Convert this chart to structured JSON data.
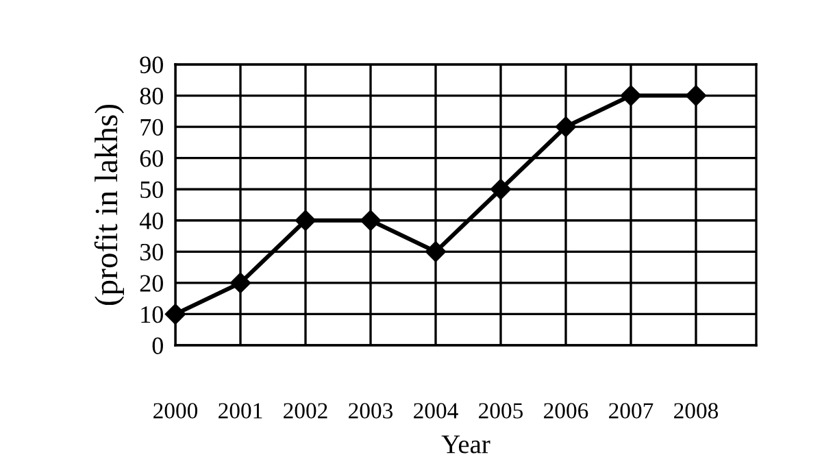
{
  "chart_data": {
    "type": "line",
    "xlabel": "Year",
    "ylabel": "(profit in lakhs)",
    "categories": [
      "2000",
      "2001",
      "2002",
      "2003",
      "2004",
      "2005",
      "2006",
      "2007",
      "2008"
    ],
    "series": [
      {
        "color": "#000000",
        "values": [
          10,
          20,
          40,
          40,
          30,
          50,
          70,
          80,
          80
        ]
      }
    ],
    "ylim": [
      0,
      90
    ],
    "yticks": [
      0,
      10,
      20,
      30,
      40,
      50,
      60,
      70,
      80,
      90
    ],
    "grid": true,
    "marker": "diamond",
    "line_style": "solid"
  }
}
